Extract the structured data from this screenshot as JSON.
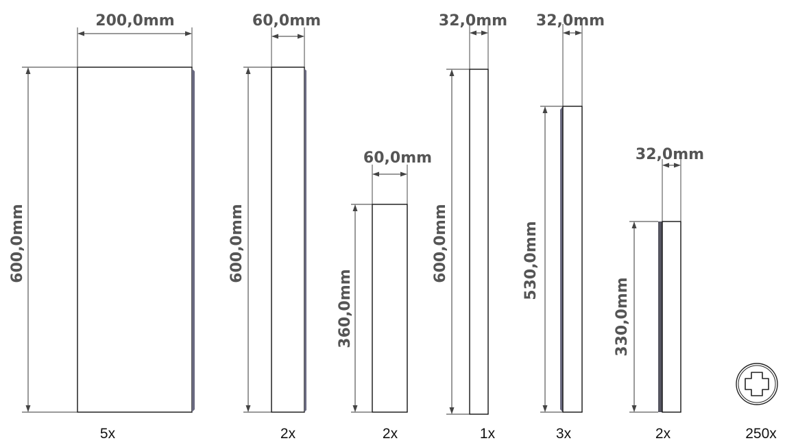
{
  "parts": [
    {
      "id": "panel-1",
      "width_label": "200,0mm",
      "height_label": "600,0mm",
      "quantity": "5x"
    },
    {
      "id": "panel-2",
      "width_label": "60,0mm",
      "height_label": "600,0mm",
      "quantity": "2x"
    },
    {
      "id": "panel-3",
      "width_label": "60,0mm",
      "height_label": "360,0mm",
      "quantity": "2x"
    },
    {
      "id": "panel-4",
      "width_label": "32,0mm",
      "height_label": "600,0mm",
      "quantity": "1x"
    },
    {
      "id": "panel-5",
      "width_label": "32,0mm",
      "height_label": "530,0mm",
      "quantity": "3x"
    },
    {
      "id": "panel-6",
      "width_label": "32,0mm",
      "height_label": "330,0mm",
      "quantity": "2x"
    }
  ],
  "screw": {
    "icon": "phillips-screw-icon",
    "quantity": "250x"
  }
}
